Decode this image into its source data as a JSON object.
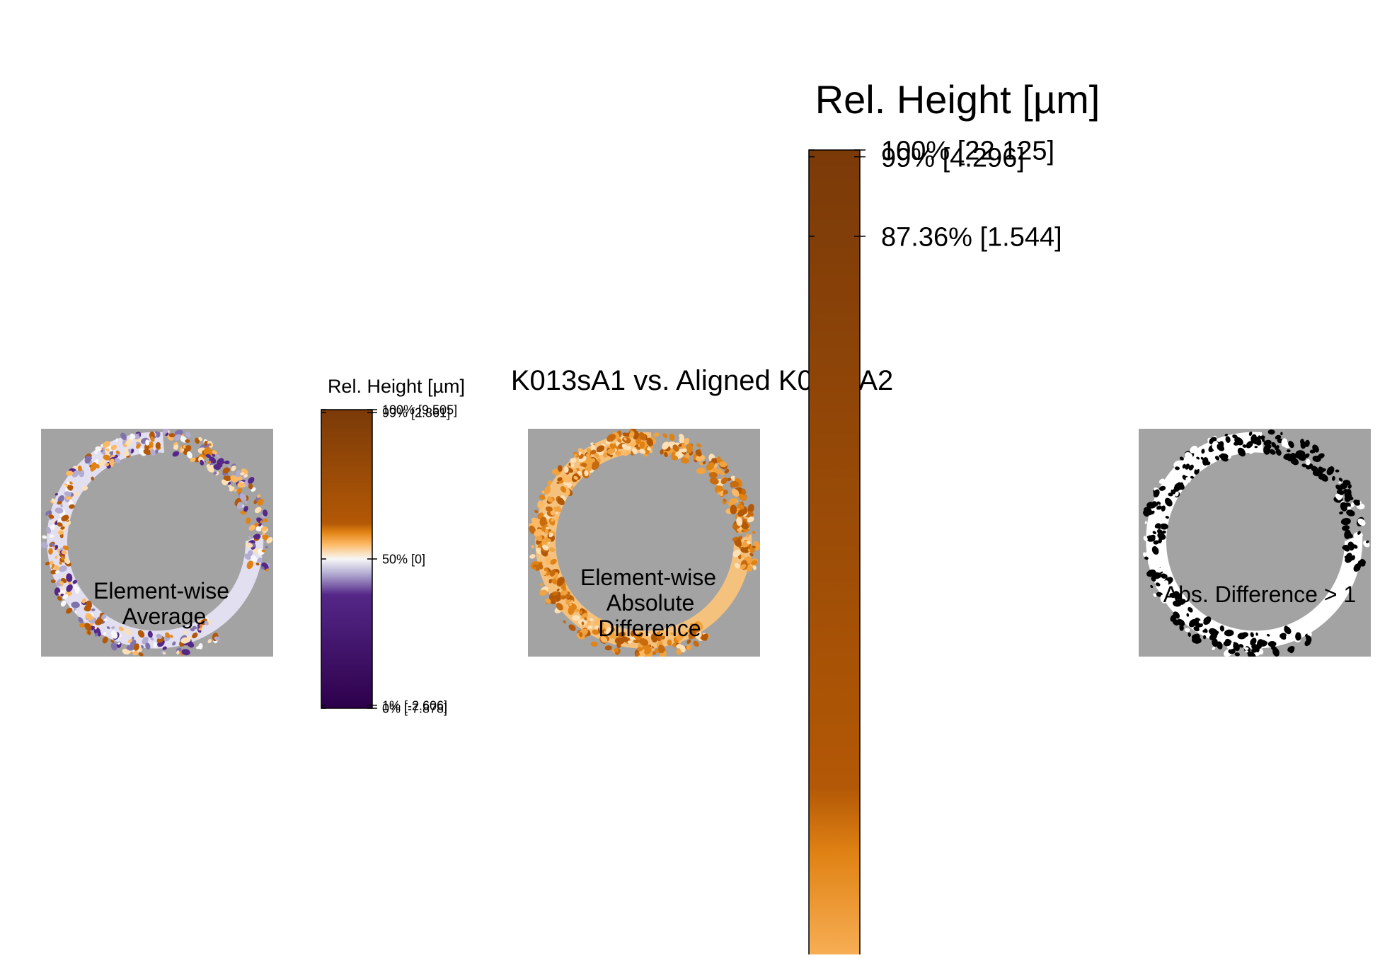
{
  "title": "K013sA1 vs. Aligned K013sA2",
  "colors": {
    "background_gray": "#a3a3a3",
    "brown_dark": "#7a3a08",
    "brown": "#b35806",
    "orange": "#f1a340",
    "light_orange": "#fee0b6",
    "white": "#f7f7f7",
    "light_purple": "#d8daeb",
    "purple": "#542788",
    "dark_purple": "#2d004b"
  },
  "chart_data": [
    {
      "type": "heatmap",
      "panel": "average",
      "label_line1": "Element-wise",
      "label_line2": "Average",
      "colorbar": {
        "title": "Rel. Height [µm]",
        "ticks": [
          {
            "fraction": 1.0,
            "label": "100% [9.505]"
          },
          {
            "fraction": 0.99,
            "label": "99% [2.861]"
          },
          {
            "fraction": 0.5,
            "label": "50% [0]"
          },
          {
            "fraction": 0.01,
            "label": "1% [-2.606]"
          },
          {
            "fraction": 0.0,
            "label": "0% [-7.878]"
          }
        ],
        "range": [
          -7.878,
          9.505
        ]
      }
    },
    {
      "type": "heatmap",
      "panel": "absolute-difference",
      "label_line1": "Element-wise",
      "label_line2": "Absolute",
      "label_line3": "Difference",
      "colorbar": {
        "title": "Rel. Height [µm]",
        "ticks": [
          {
            "fraction": 1.0,
            "label": "100% [22.125]"
          },
          {
            "fraction": 0.99,
            "label": "99% [4.296]"
          },
          {
            "fraction": 0.8736,
            "label": "87.36% [1.544]"
          }
        ],
        "range": [
          0,
          22.125
        ]
      }
    },
    {
      "type": "heatmap",
      "panel": "threshold",
      "label_line1": "Abs. Difference > 1"
    }
  ]
}
